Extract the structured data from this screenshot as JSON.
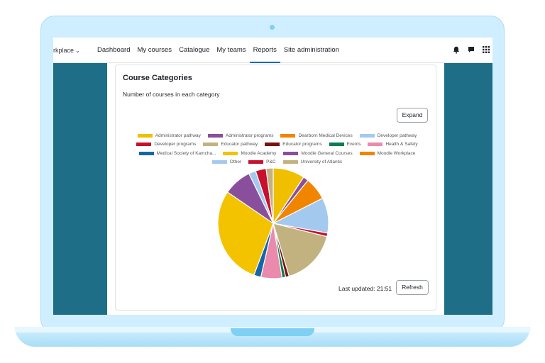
{
  "nav": {
    "brand": "rkplace",
    "items": [
      {
        "label": "Dashboard",
        "active": false
      },
      {
        "label": "My courses",
        "active": false
      },
      {
        "label": "Catalogue",
        "active": false
      },
      {
        "label": "My teams",
        "active": false
      },
      {
        "label": "Reports",
        "active": true
      },
      {
        "label": "Site administration",
        "active": false
      }
    ],
    "icons": [
      "bell-icon",
      "chat-icon",
      "grid-icon"
    ]
  },
  "card": {
    "title": "Course Categories",
    "subtitle": "Number of courses in each category",
    "expand_label": "Expand",
    "last_updated_label": "Last updated: 21:51",
    "refresh_label": "Refresh"
  },
  "chart_data": {
    "type": "pie",
    "title": "",
    "legend_position": "top",
    "categories": [
      "Administrator pathway",
      "Administrator programs",
      "Dearborn Medical Devices",
      "Developer pathway",
      "Developer programs",
      "Educator pathway",
      "Educator programs",
      "Events",
      "Health & Safety",
      "Medical Society of Kamcha...",
      "Moodle Academy",
      "Moodle General Courses",
      "Moodle Workplace",
      "Other",
      "P&C",
      "University of Atlantis"
    ],
    "colors": [
      "#f0c000",
      "#8a4f9c",
      "#f28500",
      "#a4c9ee",
      "#c8102e",
      "#c2b280",
      "#7a1212",
      "#0a7d4f",
      "#ea8bae",
      "#1466a8",
      "#f4c300",
      "#8a4f9c",
      "#f28500",
      "#a4c9ee",
      "#c8102e",
      "#c2b280"
    ],
    "values": [
      9,
      1.5,
      6.5,
      10,
      1,
      16,
      1,
      1,
      6,
      2,
      28,
      8,
      0,
      2,
      3,
      2
    ]
  }
}
